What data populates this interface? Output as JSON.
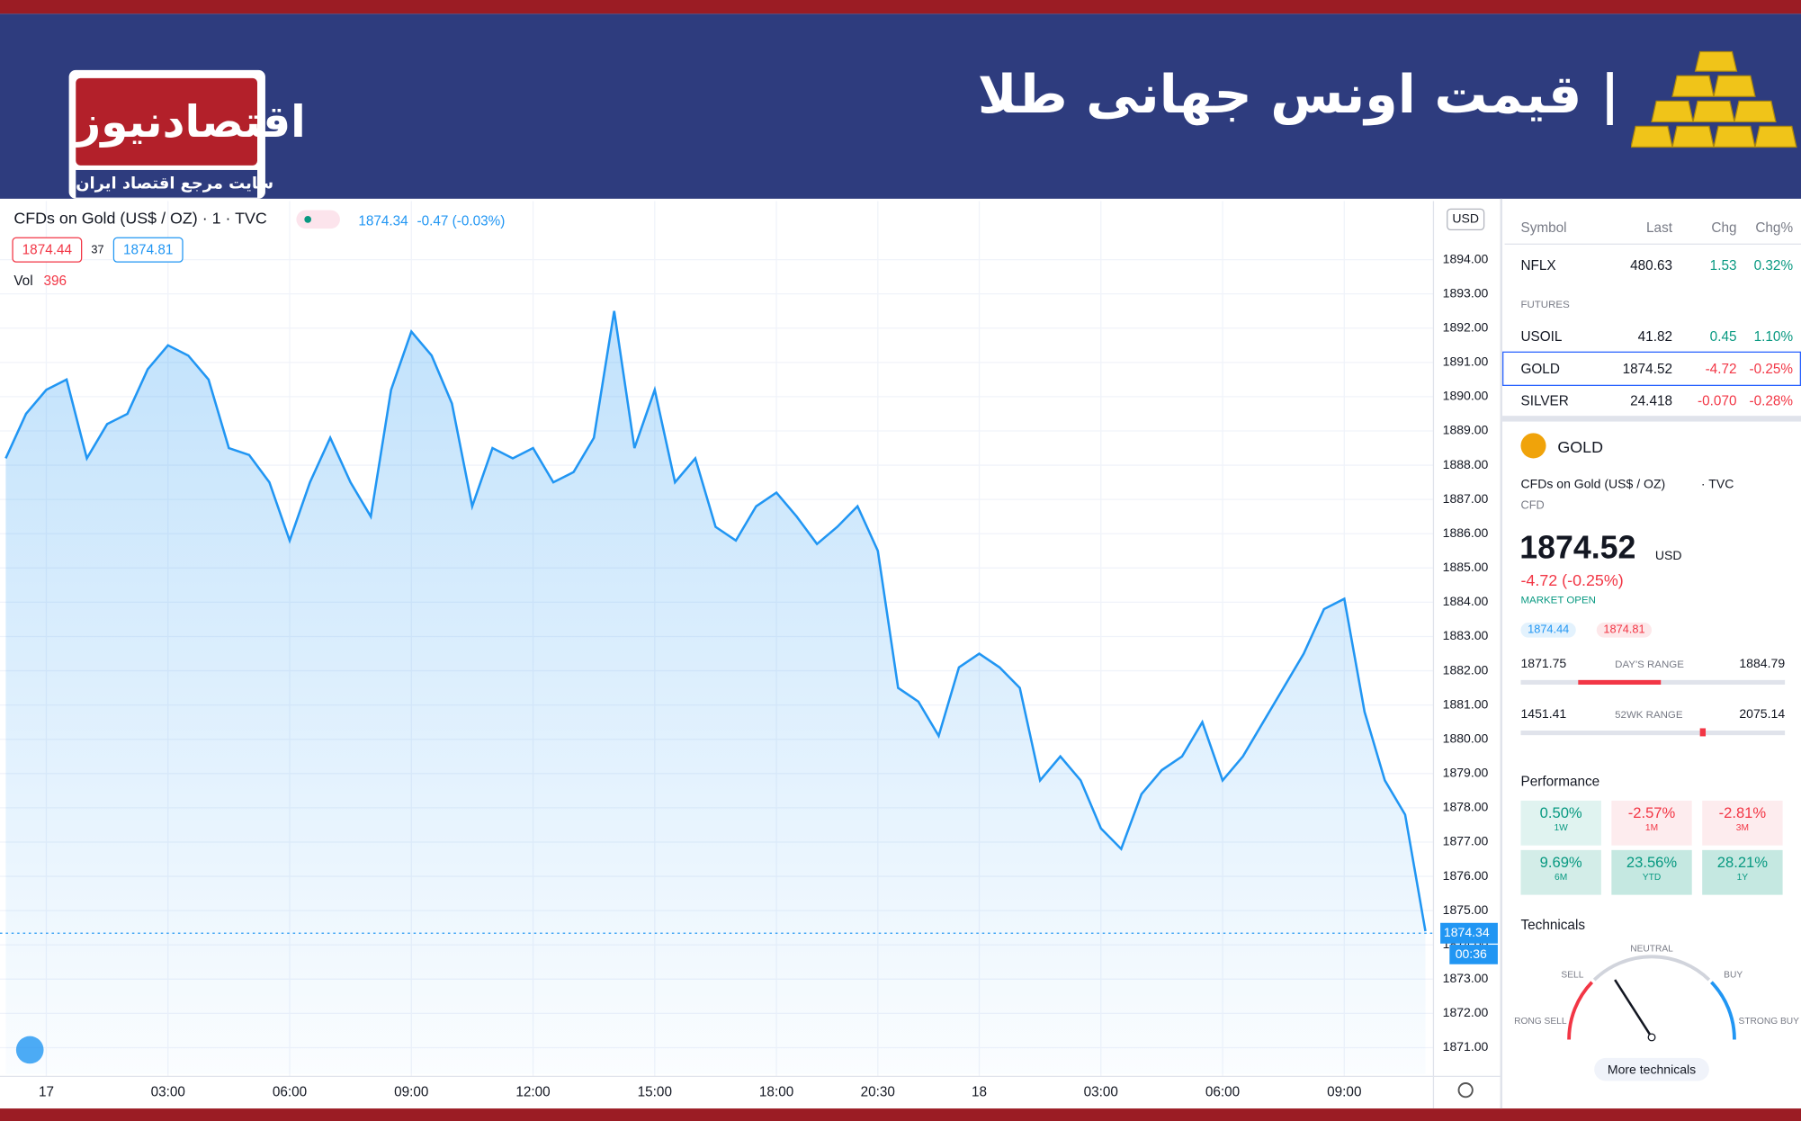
{
  "header": {
    "title": "| قیمت اونس جهانی طلا",
    "logo": "اقتصادنیوز",
    "logo_tagline": "سایت مرجع اقتصاد ایران"
  },
  "chart_data": {
    "type": "line",
    "legend_title": "CFDs on Gold (US$ / OZ) · 1 · TVC",
    "legend_change": "-0.47 (-0.03%)",
    "bid": "1874.44",
    "spread": "37",
    "ask": "1874.81",
    "volume_label": "Vol",
    "volume_value": "396",
    "currency": "USD",
    "last_price": 1874.34,
    "countdown": "00:36",
    "grid": true,
    "categories": [
      null,
      null,
      "17",
      null,
      null,
      null,
      null,
      null,
      "03:00",
      null,
      null,
      null,
      null,
      null,
      "06:00",
      null,
      null,
      null,
      null,
      null,
      "09:00",
      null,
      null,
      null,
      null,
      null,
      "12:00",
      null,
      null,
      null,
      null,
      null,
      "15:00",
      null,
      null,
      null,
      null,
      null,
      "18:00",
      null,
      null,
      null,
      null,
      "20:30",
      null,
      null,
      null,
      null,
      "18",
      null,
      null,
      null,
      null,
      null,
      "03:00",
      null,
      null,
      null,
      null,
      null,
      "06:00",
      null,
      null,
      null,
      null,
      null,
      "09:00",
      null,
      null,
      null,
      null
    ],
    "series": [
      {
        "name": "GOLD",
        "color": "#2196f3",
        "values": [
          1888.2,
          1889.5,
          1890.2,
          1890.5,
          1888.2,
          1889.2,
          1889.5,
          1890.8,
          1891.5,
          1891.2,
          1890.5,
          1888.5,
          1888.3,
          1887.5,
          1885.8,
          1887.5,
          1888.8,
          1887.5,
          1886.5,
          1890.2,
          1891.9,
          1891.2,
          1889.8,
          1886.8,
          1888.5,
          1888.2,
          1888.5,
          1887.5,
          1887.8,
          1888.8,
          1892.5,
          1888.5,
          1890.2,
          1887.5,
          1888.2,
          1886.2,
          1885.8,
          1886.8,
          1887.2,
          1886.5,
          1885.7,
          1886.2,
          1886.8,
          1885.5,
          1881.5,
          1881.1,
          1880.1,
          1882.1,
          1882.5,
          1882.1,
          1881.5,
          1878.8,
          1879.5,
          1878.8,
          1877.4,
          1876.8,
          1878.4,
          1879.1,
          1879.5,
          1880.5,
          1878.8,
          1879.5,
          1880.5,
          1881.5,
          1882.5,
          1883.8,
          1884.1,
          1880.8,
          1878.8,
          1877.8,
          1874.4
        ]
      }
    ],
    "ylim": [
      1870.23,
      1895.61
    ],
    "yticks": [
      {
        "value": 1871,
        "label": "1871.00"
      },
      {
        "value": 1872,
        "label": "1872.00"
      },
      {
        "value": 1873,
        "label": "1873.00"
      },
      {
        "value": 1874,
        "label": "1874.00"
      },
      {
        "value": 1875,
        "label": "1875.00"
      },
      {
        "value": 1876,
        "label": "1876.00"
      },
      {
        "value": 1877,
        "label": "1877.00"
      },
      {
        "value": 1878,
        "label": "1878.00"
      },
      {
        "value": 1879,
        "label": "1879.00"
      },
      {
        "value": 1880,
        "label": "1880.00"
      },
      {
        "value": 1881,
        "label": "1881.00"
      },
      {
        "value": 1882,
        "label": "1882.00"
      },
      {
        "value": 1883,
        "label": "1883.00"
      },
      {
        "value": 1884,
        "label": "1884.00"
      },
      {
        "value": 1885,
        "label": "1885.00"
      },
      {
        "value": 1886,
        "label": "1886.00"
      },
      {
        "value": 1887,
        "label": "1887.00"
      },
      {
        "value": 1888,
        "label": "1888.00"
      },
      {
        "value": 1889,
        "label": "1889.00"
      },
      {
        "value": 1890,
        "label": "1890.00"
      },
      {
        "value": 1891,
        "label": "1891.00"
      },
      {
        "value": 1892,
        "label": "1892.00"
      },
      {
        "value": 1893,
        "label": "1893.00"
      },
      {
        "value": 1894,
        "label": "1894.00"
      }
    ]
  },
  "watchlist": {
    "columns": [
      "Symbol",
      "Last",
      "Chg",
      "Chg%"
    ],
    "group": "FUTURES",
    "rows": [
      [
        "NFLX",
        "480.63",
        "1.53",
        "0.32%"
      ],
      [
        "USOIL",
        "41.82",
        "0.45",
        "1.10%"
      ],
      [
        "GOLD",
        "1874.52",
        "-4.72",
        "-0.25%"
      ],
      [
        "SILVER",
        "24.418",
        "-0.070",
        "-0.28%"
      ]
    ]
  },
  "details": {
    "symbol": "GOLD",
    "description": "CFDs on Gold (US$ / OZ)",
    "exchange": "· TVC",
    "kind": "CFD",
    "price": "1874.52",
    "currency": "USD",
    "change": "-4.72 (-0.25%)",
    "status": "MARKET OPEN",
    "bid": "1874.44",
    "ask": "1874.81",
    "day_low": "1871.75",
    "day_range": "DAY'S RANGE",
    "day_high": "1884.79",
    "wk_low": "1451.41",
    "wk_range": "52WK RANGE",
    "wk_high": "2075.14",
    "performance_title": "Performance",
    "performance": [
      [
        "0.50%",
        "1W"
      ],
      [
        "-2.57%",
        "1M"
      ],
      [
        "-2.81%",
        "3M"
      ],
      [
        "9.69%",
        "6M"
      ],
      [
        "23.56%",
        "YTD"
      ],
      [
        "28.21%",
        "1Y"
      ]
    ],
    "technicals_title": "Technicals",
    "gauge": {
      "sell": "SELL",
      "neutral": "NEUTRAL",
      "buy": "BUY",
      "strong_sell": "STRONG SELL",
      "strong_buy": "STRONG BUY"
    },
    "more": "More technicals"
  }
}
